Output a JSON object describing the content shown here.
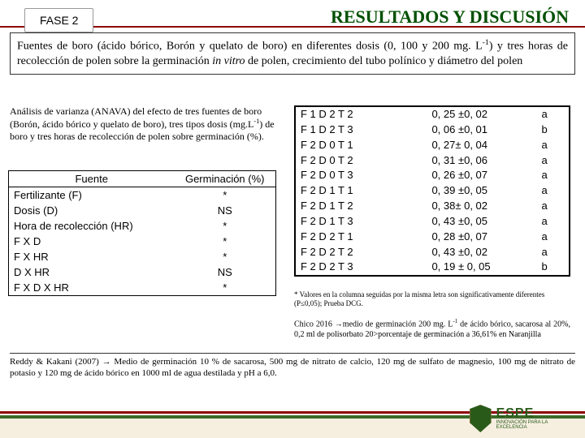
{
  "header": {
    "phase": "FASE 2",
    "title": "RESULTADOS Y DISCUSIÓN"
  },
  "desc": {
    "text_a": "Fuentes de boro (ácido bórico, Borón y quelato de boro) en diferentes dosis (0, 100 y 200 mg. L",
    "sup1": "-1",
    "text_b": ") y tres horas de recolección de polen sobre la  germinación ",
    "italic": "in vitro",
    "text_c": " de polen, crecimiento del tubo polínico y diámetro del polen"
  },
  "anava": {
    "line1": "Análisis de varianza (ANAVA) del efecto de tres fuentes de boro (Borón, ácido bórico y quelato de boro), tres tipos dosis (mg.L",
    "sup": "-1",
    "line2": ") de boro y tres horas de recolección de polen sobre germinación (%)."
  },
  "left_table": {
    "col1": "Fuente",
    "col2": "Germinación (%)",
    "rows": [
      {
        "src": "Fertilizante (F)",
        "val": "*"
      },
      {
        "src": "Dosis          (D)",
        "val": "NS"
      },
      {
        "src": "Hora de recolección (HR)",
        "val": "*"
      },
      {
        "src": "F X  D",
        "val": "*"
      },
      {
        "src": "F   X  HR",
        "val": "*"
      },
      {
        "src": "D X   HR",
        "val": "NS"
      },
      {
        "src": "F   X  D  X HR",
        "val": "*"
      }
    ]
  },
  "right_table": {
    "rows": [
      {
        "code": "F 1 D 2 T 2",
        "val": "0, 25  ±0, 02",
        "grp": "a"
      },
      {
        "code": "F 1 D 2 T 3",
        "val": "0, 06  ±0, 01",
        "grp": "b"
      },
      {
        "code": "F 2 D 0 T 1",
        "val": "0, 27± 0, 04",
        "grp": "a"
      },
      {
        "code": "F 2 D 0 T 2",
        "val": "0, 31  ±0, 06",
        "grp": "a"
      },
      {
        "code": "F 2 D 0 T 3",
        "val": "0, 26  ±0, 07",
        "grp": "a"
      },
      {
        "code": "F 2 D 1 T 1",
        "val": "0, 39 ±0, 05",
        "grp": "a"
      },
      {
        "code": "F 2 D 1 T 2",
        "val": "0, 38± 0, 02",
        "grp": "a"
      },
      {
        "code": "F 2 D 1 T 3",
        "val": "0, 43 ±0, 05",
        "grp": "a"
      },
      {
        "code": "F 2 D 2 T 1",
        "val": "0, 28  ±0, 07",
        "grp": "a"
      },
      {
        "code": "F 2 D 2 T 2",
        "val": "0, 43 ±0, 02",
        "grp": "a"
      },
      {
        "code": "F 2 D 2 T 3",
        "val": "0, 19 ± 0, 05",
        "grp": "b"
      }
    ]
  },
  "right_note1": "* Valores en la columna seguidas por la misma letra son significativamente diferentes (P≤0,05); Prueba  DCG.",
  "right_note2_a": "Chico 2016 →medio de germinación 200 mg. L",
  "right_note2_sup": "-1",
  "right_note2_b": " de ácido bórico, sacarosa al 20%, 0,2 ml de polisorbato 20>porcentaje de germinación a 36,61% en Naranjilla",
  "bottom_note": "Reddy & Kakani (2007) → Medio de germinación 10 % de sacarosa, 500 mg de nitrato de calcio, 120 mg de sulfato de magnesio, 100 mg de nitrato de potasio y 120 mg de ácido bórico en 1000 ml de agua destilada y pH a 6,0.",
  "logo": {
    "name": "ESPE",
    "tag": "INNOVACIÓN PARA LA EXCELENCIA"
  }
}
